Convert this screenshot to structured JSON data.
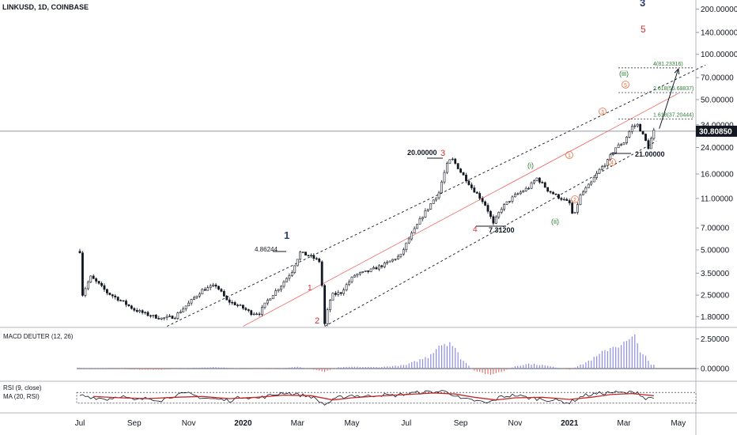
{
  "header": {
    "symbol_line": "LINKUSD, 1D, COINBASE"
  },
  "colors": {
    "candle": "#131722",
    "channel": "#131722",
    "fib_line": "#ef5350",
    "wave_red": "#d32f2f",
    "wave_navy": "#2f3d6b",
    "wave_green": "#2e7d32",
    "wave_orange": "#ef6c3f",
    "macd_pos": "#8c8ce6",
    "macd_neg": "#e57373",
    "rsi": "#131722",
    "rsi_ma": "#c62828"
  },
  "price_axis": {
    "scale": "log",
    "ylim": [
      1.6,
      230
    ],
    "ticks": [
      "200.00000",
      "140.00000",
      "100.00000",
      "70.00000",
      "50.00000",
      "34.00000",
      "24.00000",
      "16.00000",
      "11.00000",
      "7.00000",
      "5.00000",
      "3.50000",
      "2.50000",
      "1.80000"
    ],
    "tick_values": [
      200,
      140,
      100,
      70,
      50,
      34,
      24,
      16,
      11,
      7,
      5,
      3.5,
      2.5,
      1.8
    ],
    "last_price": "30.80850",
    "last_price_value": 30.8085
  },
  "macd_panel": {
    "label": "MACD DEUTER (12, 26)",
    "ticks": [
      "2.50000",
      "0.00000"
    ],
    "tick_values": [
      2.5,
      0
    ]
  },
  "rsi_panel": {
    "label_rsi": "RSI (9, close)",
    "label_ma": "MA (20, RSI)"
  },
  "x_axis": {
    "labels": [
      "Jul",
      "Sep",
      "Nov",
      "2020",
      "Mar",
      "May",
      "Jul",
      "Sep",
      "Nov",
      "2021",
      "Mar",
      "May"
    ],
    "label_months": [
      0,
      2,
      4,
      6,
      8,
      10,
      12,
      14,
      16,
      18,
      20,
      22
    ],
    "bold": [
      "2020",
      "2021"
    ]
  },
  "annotations": {
    "top_label_1": "4.86244",
    "top_label_3": "20.00000",
    "low_label_4": "7.31200",
    "low_label_rt": "21.00000",
    "wave_1": "1",
    "wave_1_red": "1",
    "wave_2": "2",
    "wave_3": "3",
    "wave_4": "4",
    "wave_3_big": "3",
    "wave_5_big": "5",
    "sub_i": "(i)",
    "sub_ii": "(ii)",
    "sub_iii": "(iii)",
    "circ_1": "1",
    "circ_2": "2",
    "circ_3": "3",
    "circ_4": "4",
    "circ_5": "5",
    "fib_1618": "1.618(37.20444)",
    "fib_2618": "2.618(55.68837)",
    "fib_4": "4(81.23316)"
  },
  "chart_data": {
    "type": "candlestick",
    "price_scale": "log",
    "x_unit": "months since Jul 2019",
    "price_path": [
      [
        0.0,
        4.9
      ],
      [
        0.05,
        2.4
      ],
      [
        0.4,
        3.3
      ],
      [
        1.0,
        2.6
      ],
      [
        1.5,
        2.3
      ],
      [
        2.0,
        2.0
      ],
      [
        2.5,
        1.85
      ],
      [
        3.0,
        1.75
      ],
      [
        3.5,
        1.8
      ],
      [
        4.0,
        2.2
      ],
      [
        4.5,
        2.7
      ],
      [
        5.0,
        2.9
      ],
      [
        5.4,
        2.3
      ],
      [
        5.9,
        2.1
      ],
      [
        6.3,
        1.9
      ],
      [
        6.6,
        1.9
      ],
      [
        6.9,
        2.3
      ],
      [
        7.4,
        2.9
      ],
      [
        7.8,
        3.6
      ],
      [
        8.1,
        4.8
      ],
      [
        8.5,
        4.5
      ],
      [
        8.8,
        4.2
      ],
      [
        9.0,
        1.6
      ],
      [
        9.25,
        2.5
      ],
      [
        9.6,
        2.6
      ],
      [
        10.1,
        3.4
      ],
      [
        10.6,
        3.6
      ],
      [
        11.2,
        4.0
      ],
      [
        11.8,
        4.6
      ],
      [
        12.3,
        6.8
      ],
      [
        12.8,
        9.5
      ],
      [
        13.2,
        12.0
      ],
      [
        13.55,
        19.5
      ],
      [
        13.7,
        19.9
      ],
      [
        14.0,
        16.5
      ],
      [
        14.4,
        13.0
      ],
      [
        14.9,
        10.0
      ],
      [
        15.2,
        7.4
      ],
      [
        15.5,
        9.5
      ],
      [
        16.0,
        11.5
      ],
      [
        16.5,
        13.0
      ],
      [
        16.8,
        15.0
      ],
      [
        17.2,
        12.5
      ],
      [
        17.5,
        11.5
      ],
      [
        18.0,
        10.2
      ],
      [
        18.15,
        8.0
      ],
      [
        18.4,
        11.5
      ],
      [
        18.8,
        14.0
      ],
      [
        19.1,
        17.0
      ],
      [
        19.4,
        19.5
      ],
      [
        19.7,
        24.0
      ],
      [
        20.0,
        26.0
      ],
      [
        20.3,
        33.0
      ],
      [
        20.5,
        34.0
      ],
      [
        20.7,
        29.0
      ],
      [
        20.9,
        24.0
      ],
      [
        21.1,
        30.8
      ]
    ],
    "candles_per_month": 10,
    "channel_lines": [
      {
        "name": "upper",
        "from": [
          3.2,
          1.55
        ],
        "to": [
          23.0,
          85.0
        ]
      },
      {
        "name": "lower",
        "from": [
          9.0,
          1.55
        ],
        "to": [
          21.2,
          26.5
        ]
      },
      {
        "name": "median",
        "from": [
          6.0,
          1.55
        ],
        "to": [
          22.0,
          55.0
        ]
      }
    ],
    "fib_targets": [
      {
        "label": "1.618(37.20444)",
        "value": 37.20444
      },
      {
        "label": "2.618(55.68837)",
        "value": 55.68837
      },
      {
        "label": "4(81.23316)",
        "value": 81.23316
      }
    ],
    "projection_arrow": {
      "from": [
        21.3,
        32.0
      ],
      "to": [
        22.0,
        80.0
      ]
    },
    "macd_ylim": [
      -0.8,
      3.2
    ],
    "macd_path": [
      [
        0,
        0.05
      ],
      [
        1,
        0.02
      ],
      [
        2,
        -0.08
      ],
      [
        3,
        -0.1
      ],
      [
        4,
        0.05
      ],
      [
        5,
        0.12
      ],
      [
        6,
        0.0
      ],
      [
        7,
        -0.05
      ],
      [
        8,
        0.15
      ],
      [
        9,
        -0.25
      ],
      [
        9.5,
        0.1
      ],
      [
        10,
        0.15
      ],
      [
        11,
        0.12
      ],
      [
        12,
        0.3
      ],
      [
        12.8,
        1.0
      ],
      [
        13.2,
        2.0
      ],
      [
        13.6,
        2.3
      ],
      [
        14.0,
        0.9
      ],
      [
        14.5,
        -0.2
      ],
      [
        15.0,
        -0.5
      ],
      [
        15.5,
        -0.3
      ],
      [
        16.0,
        0.2
      ],
      [
        16.5,
        0.4
      ],
      [
        17.0,
        0.3
      ],
      [
        17.5,
        0.1
      ],
      [
        18.0,
        -0.1
      ],
      [
        18.5,
        0.4
      ],
      [
        19.0,
        1.0
      ],
      [
        19.5,
        1.8
      ],
      [
        20.0,
        2.1
      ],
      [
        20.4,
        2.6
      ],
      [
        20.6,
        1.6
      ],
      [
        21.0,
        0.3
      ]
    ],
    "rsi_path": [
      [
        0,
        60
      ],
      [
        0.5,
        52
      ],
      [
        1,
        45
      ],
      [
        1.5,
        58
      ],
      [
        2,
        40
      ],
      [
        2.5,
        48
      ],
      [
        3,
        42
      ],
      [
        3.5,
        60
      ],
      [
        4,
        65
      ],
      [
        4.5,
        50
      ],
      [
        5,
        45
      ],
      [
        5.5,
        40
      ],
      [
        6,
        55
      ],
      [
        6.5,
        48
      ],
      [
        7,
        58
      ],
      [
        7.5,
        70
      ],
      [
        8,
        62
      ],
      [
        8.5,
        55
      ],
      [
        9,
        25
      ],
      [
        9.5,
        50
      ],
      [
        10,
        60
      ],
      [
        10.5,
        55
      ],
      [
        11,
        62
      ],
      [
        11.5,
        58
      ],
      [
        12,
        65
      ],
      [
        12.5,
        70
      ],
      [
        13,
        72
      ],
      [
        13.5,
        75
      ],
      [
        14,
        45
      ],
      [
        14.5,
        40
      ],
      [
        15,
        30
      ],
      [
        15.5,
        55
      ],
      [
        16,
        60
      ],
      [
        16.5,
        50
      ],
      [
        17,
        45
      ],
      [
        17.5,
        40
      ],
      [
        18,
        32
      ],
      [
        18.5,
        58
      ],
      [
        19,
        65
      ],
      [
        19.5,
        70
      ],
      [
        20,
        68
      ],
      [
        20.5,
        72
      ],
      [
        20.8,
        45
      ],
      [
        21.1,
        55
      ]
    ],
    "rsi_ma_path": [
      [
        0.5,
        55
      ],
      [
        1.5,
        50
      ],
      [
        2.5,
        47
      ],
      [
        3.5,
        52
      ],
      [
        4.5,
        55
      ],
      [
        5.5,
        47
      ],
      [
        6.5,
        52
      ],
      [
        7.5,
        60
      ],
      [
        8.5,
        58
      ],
      [
        9.3,
        42
      ],
      [
        10,
        50
      ],
      [
        11,
        57
      ],
      [
        12,
        62
      ],
      [
        13,
        68
      ],
      [
        13.8,
        64
      ],
      [
        14.5,
        52
      ],
      [
        15.3,
        42
      ],
      [
        16,
        50
      ],
      [
        17,
        52
      ],
      [
        18,
        44
      ],
      [
        18.8,
        52
      ],
      [
        19.5,
        62
      ],
      [
        20.3,
        66
      ],
      [
        21.1,
        58
      ]
    ]
  }
}
